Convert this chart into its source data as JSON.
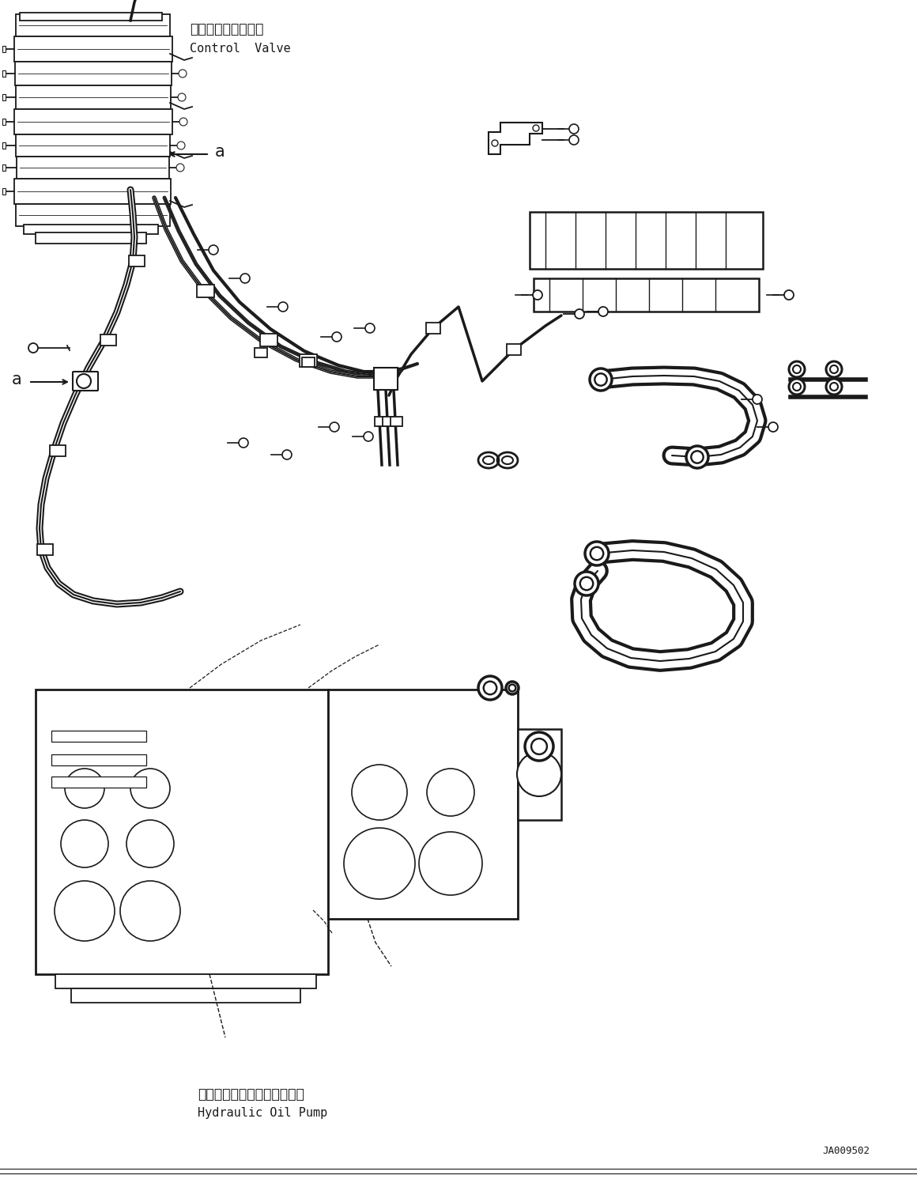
{
  "bg_color": "#ffffff",
  "line_color": "#1a1a1a",
  "label_cv_jp": "コントロールバルブ",
  "label_cv_en": "Control  Valve",
  "label_hp_jp": "ハイドロリックオイルポンプ",
  "label_hp_en": "Hydraulic Oil Pump",
  "watermark": "JA009502",
  "fig_width": 11.6,
  "fig_height": 14.91,
  "dpi": 100
}
